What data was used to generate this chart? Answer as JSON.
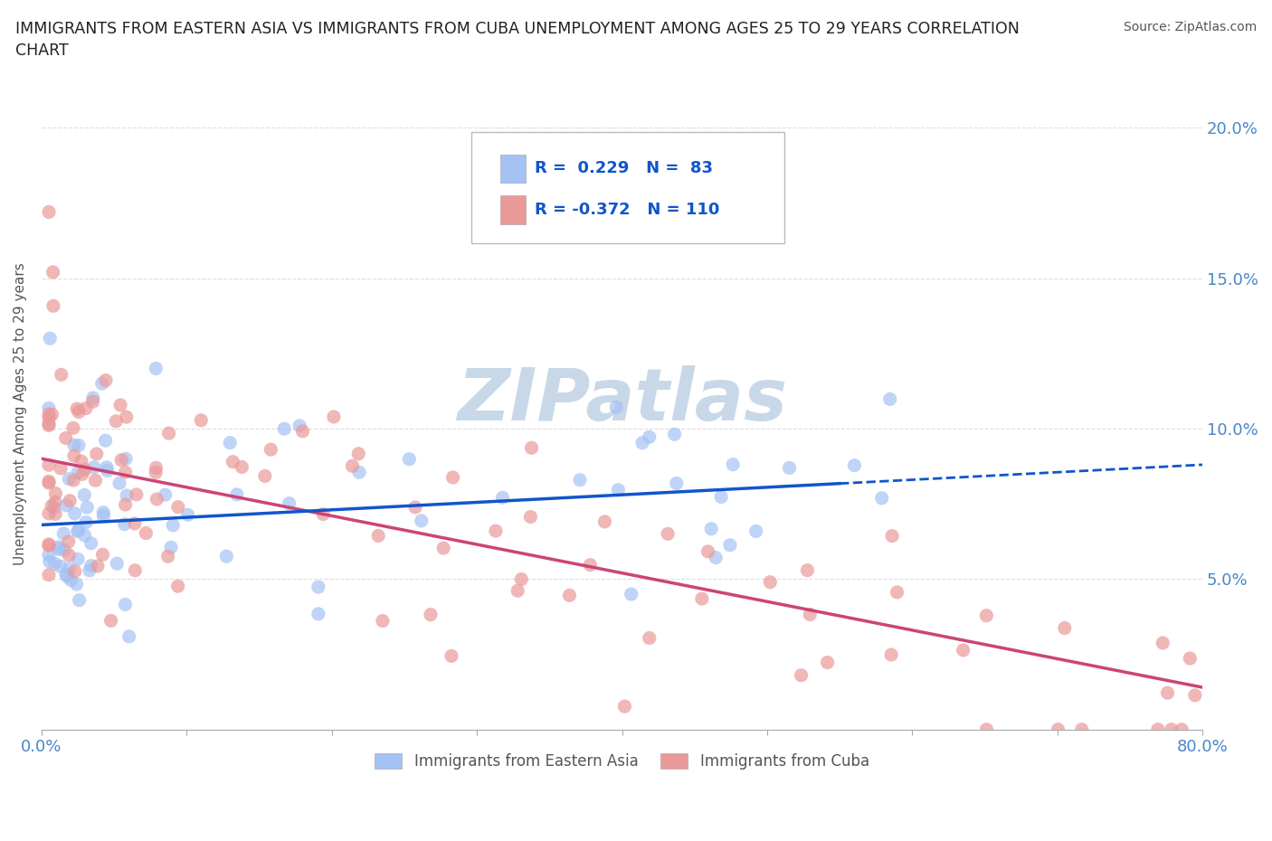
{
  "title": "IMMIGRANTS FROM EASTERN ASIA VS IMMIGRANTS FROM CUBA UNEMPLOYMENT AMONG AGES 25 TO 29 YEARS CORRELATION\nCHART",
  "source_text": "Source: ZipAtlas.com",
  "ylabel": "Unemployment Among Ages 25 to 29 years",
  "xlim": [
    0,
    0.8
  ],
  "ylim": [
    0,
    0.21
  ],
  "xtick_positions": [
    0.0,
    0.1,
    0.2,
    0.3,
    0.4,
    0.5,
    0.6,
    0.7,
    0.8
  ],
  "ytick_positions": [
    0.0,
    0.05,
    0.1,
    0.15,
    0.2
  ],
  "yticklabels_right": [
    "",
    "5.0%",
    "10.0%",
    "15.0%",
    "20.0%"
  ],
  "eastern_asia_color": "#a4c2f4",
  "cuba_color": "#ea9999",
  "eastern_asia_line_color": "#1155cc",
  "cuba_line_color": "#cc4477",
  "eastern_asia_R": 0.229,
  "eastern_asia_N": 83,
  "cuba_R": -0.372,
  "cuba_N": 110,
  "ea_intercept": 0.068,
  "ea_slope": 0.025,
  "cu_intercept": 0.09,
  "cu_slope": -0.095,
  "background_color": "#ffffff",
  "grid_color": "#dddddd",
  "watermark_text": "ZIPatlas",
  "watermark_color": "#c8d8e8",
  "legend_box_color": "#e8f0fe",
  "legend_text_color": "#1155cc"
}
